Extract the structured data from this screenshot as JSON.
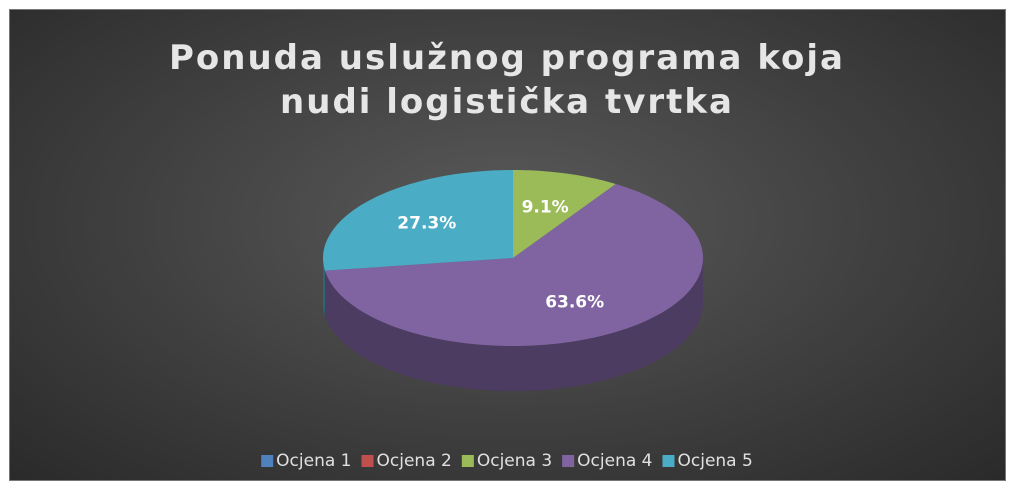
{
  "chart_data": {
    "type": "pie",
    "title": "Ponuda uslužnog programa koja nudi logistička tvrtka",
    "categories": [
      "Ocjena 1",
      "Ocjena 2",
      "Ocjena 3",
      "Ocjena 4",
      "Ocjena 5"
    ],
    "values": [
      0,
      0,
      9.1,
      63.6,
      27.3
    ],
    "value_labels": [
      null,
      null,
      "9.1%",
      "63.6%",
      "27.3%"
    ],
    "colors": [
      "#4f81bd",
      "#c0504d",
      "#9bbb59",
      "#8064a2",
      "#4bacc6"
    ],
    "legend": "bottom"
  }
}
